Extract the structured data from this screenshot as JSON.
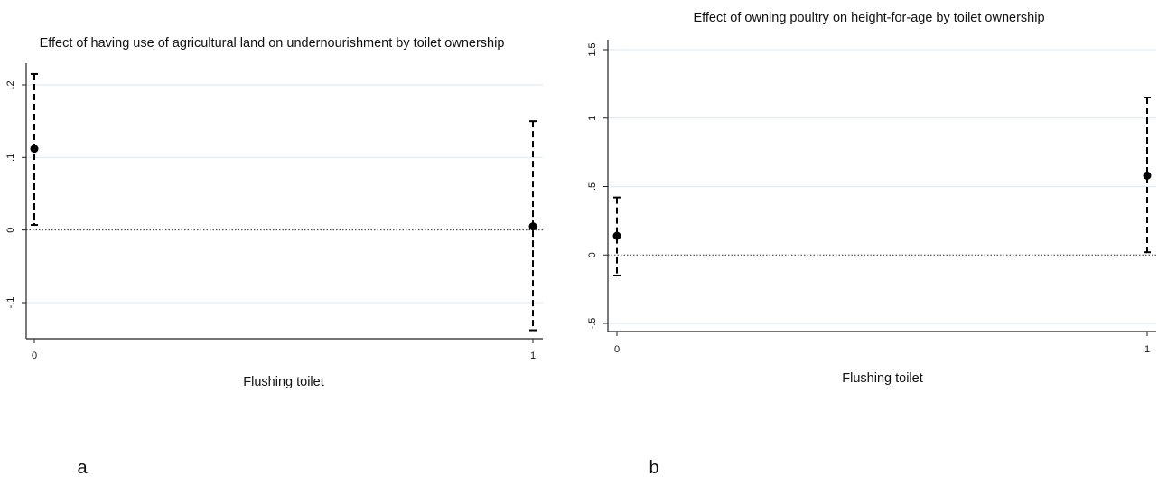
{
  "chart_data": [
    {
      "type": "scatter",
      "title": "Effect of having use of agricultural land on undernourishment by toilet ownership",
      "xlabel": "Flushing toilet",
      "ylabel": "",
      "x_ticks": [
        "0",
        "1"
      ],
      "y_ticks": [
        ".2",
        ".1",
        "0",
        "-.1"
      ],
      "ylim": [
        -0.15,
        0.23
      ],
      "grid": true,
      "reference_line": 0,
      "points": [
        {
          "x": 0,
          "y": 0.112,
          "lower": 0.007,
          "upper": 0.215
        },
        {
          "x": 1,
          "y": 0.005,
          "lower": -0.138,
          "upper": 0.15
        }
      ],
      "panel_label": "a"
    },
    {
      "type": "scatter",
      "title": "Effect of owning poultry on height-for-age by toilet ownership",
      "xlabel": "Flushing toilet",
      "ylabel": "",
      "x_ticks": [
        "0",
        "1"
      ],
      "y_ticks": [
        "1.5",
        "1",
        ".5",
        "0",
        "-.5"
      ],
      "ylim": [
        -0.55,
        1.6
      ],
      "grid": true,
      "reference_line": 0,
      "points": [
        {
          "x": 0,
          "y": 0.14,
          "lower": -0.15,
          "upper": 0.42
        },
        {
          "x": 1,
          "y": 0.58,
          "lower": 0.02,
          "upper": 1.15
        }
      ],
      "panel_label": "b"
    }
  ]
}
